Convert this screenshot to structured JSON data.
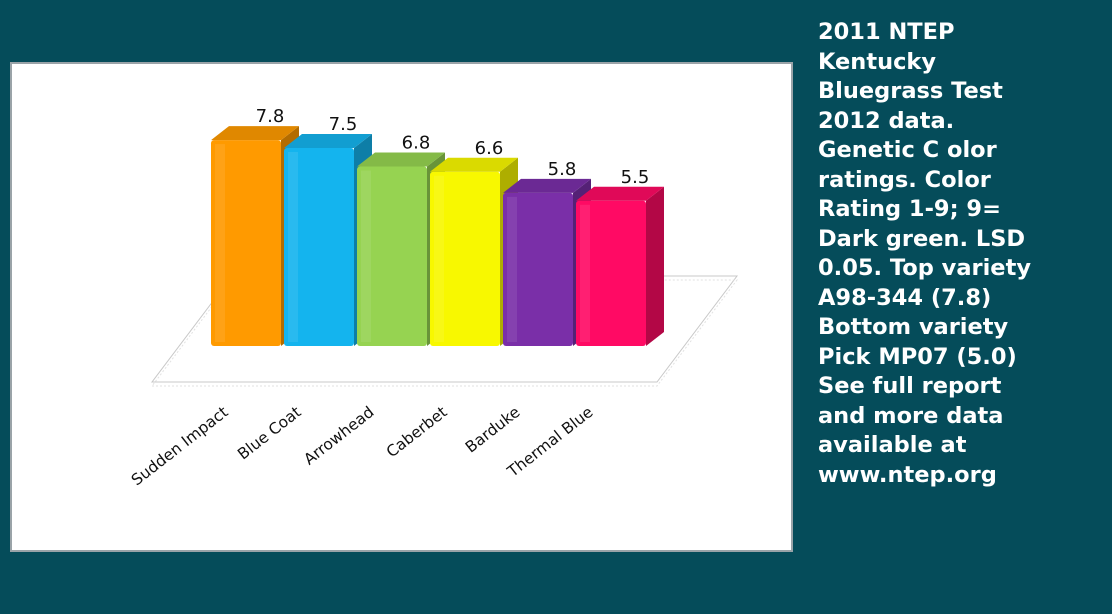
{
  "caption_lines": [
    "2011 NTEP",
    "Kentucky",
    "Bluegrass Test",
    "2012 data.",
    "Genetic C olor",
    "ratings. Color",
    "Rating 1-9; 9=",
    "Dark green. LSD",
    "0.05. Top variety",
    "A98-344 (7.8)",
    "Bottom variety",
    "Pick MP07 (5.0)",
    "See full report",
    "and more data",
    "available at",
    "www.ntep.org"
  ],
  "chart_data": {
    "type": "bar",
    "style": "3d",
    "categories": [
      "Sudden Impact",
      "Blue Coat",
      "Arrowhead",
      "Caberbet",
      "Barduke",
      "Thermal Blue"
    ],
    "values": [
      7.8,
      7.5,
      6.8,
      6.6,
      5.8,
      5.5
    ],
    "value_labels": [
      "7.8",
      "7.5",
      "6.8",
      "6.6",
      "5.8",
      "5.5"
    ],
    "colors": [
      "#FF9A00",
      "#14B4EE",
      "#96D351",
      "#F8F800",
      "#7A2FA8",
      "#FF0A64"
    ],
    "grid": false,
    "legend": false
  },
  "colors": {
    "background": "#054C5A",
    "chart_background": "#FFFFFF"
  }
}
